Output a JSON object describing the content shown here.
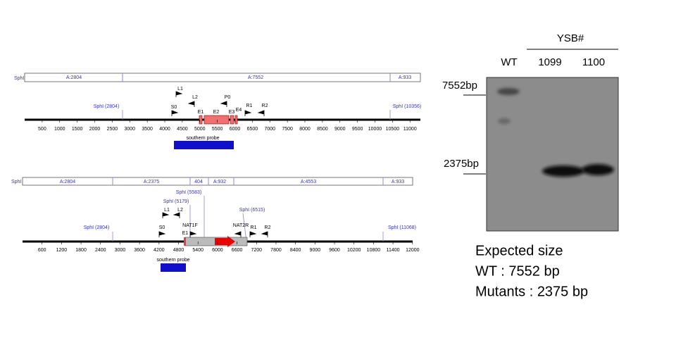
{
  "map1": {
    "fragment_label": "SphI",
    "fragments": [
      "A:2804",
      "A:7552",
      "A:933"
    ],
    "sites": [
      "SphI (2804)",
      "SphI (10356)"
    ],
    "primers": [
      "L1",
      "L2",
      "S0",
      "P0",
      "R1",
      "R2"
    ],
    "exons": [
      "E1",
      "E2",
      "E3",
      "E4"
    ],
    "ticks": [
      500,
      1000,
      1500,
      2000,
      2500,
      3000,
      3500,
      4000,
      4500,
      5000,
      5500,
      6000,
      6500,
      7000,
      7500,
      8000,
      8500,
      9000,
      9500,
      10000,
      10500,
      11000
    ],
    "probe": "southern probe"
  },
  "map2": {
    "fragment_label": "SphI",
    "fragments": [
      "A:2804",
      "A:2375",
      "404",
      "A:932",
      "A:4553",
      "A:933"
    ],
    "sites": [
      "SphI (5583)",
      "SphI (5179)",
      "SphI (6515)",
      "SphI (2804)",
      "SphI (11068)"
    ],
    "primers": [
      "L1",
      "L2",
      "S0",
      "E1",
      "NAT1F",
      "NAT2R",
      "R1",
      "R2"
    ],
    "ticks": [
      600,
      1200,
      1800,
      2400,
      3000,
      3600,
      4200,
      4800,
      5400,
      6000,
      6600,
      7200,
      7800,
      8400,
      9000,
      9600,
      10200,
      10800,
      11400,
      12000
    ],
    "probe": "southern probe"
  },
  "blot": {
    "group": "YSB#",
    "lanes": [
      "WT",
      "1099",
      "1100"
    ],
    "markers": [
      "7552bp",
      "2375bp"
    ]
  },
  "notes": {
    "title": "Expected size",
    "lines": [
      "WT : 7552 bp",
      "Mutants : 2375 bp"
    ]
  }
}
